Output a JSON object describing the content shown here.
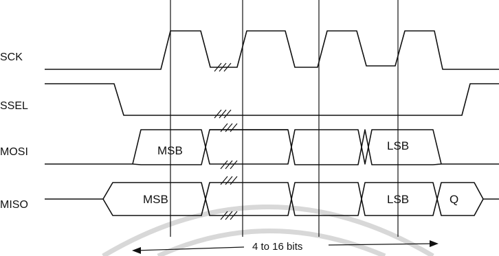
{
  "signals": {
    "sck": "SCK",
    "ssel": "SSEL",
    "mosi": "MOSI",
    "miso": "MISO"
  },
  "mosi_cells": {
    "msb": "MSB",
    "lsb": "LSB"
  },
  "miso_cells": {
    "msb": "MSB",
    "lsb": "LSB",
    "q": "Q"
  },
  "bit_count": "4 to 16 bits"
}
